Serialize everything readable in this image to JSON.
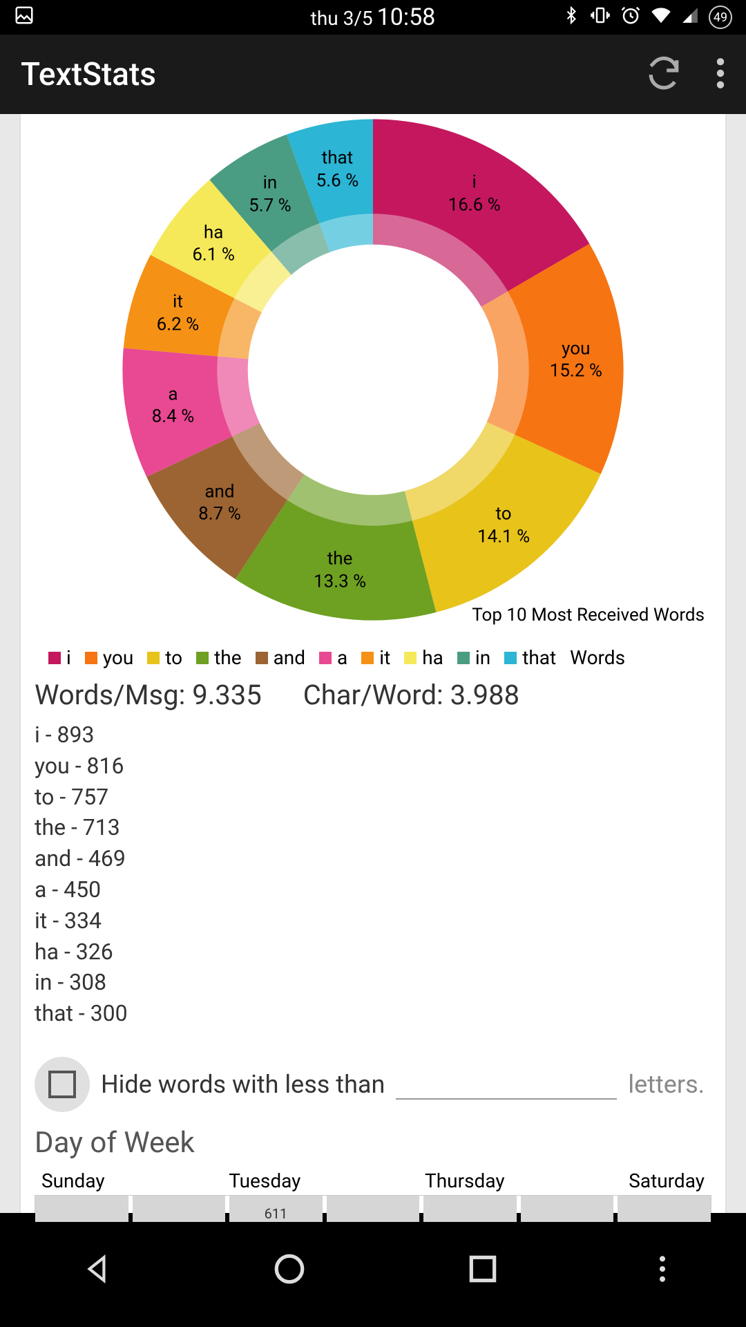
{
  "status": {
    "date": "thu 3/5",
    "time": "10:58",
    "battery": "49"
  },
  "appbar": {
    "title": "TextStats"
  },
  "chart": {
    "type": "donut",
    "caption": "Top 10 Most Received Words",
    "inner_ratio": 0.5,
    "background_color": "#ffffff",
    "label_fontsize": 26,
    "label_color": "#000000",
    "slices": [
      {
        "word": "i",
        "pct": 16.6,
        "color": "#c4175e"
      },
      {
        "word": "you",
        "pct": 15.2,
        "color": "#f77412"
      },
      {
        "word": "to",
        "pct": 14.1,
        "color": "#e8c31a"
      },
      {
        "word": "the",
        "pct": 13.3,
        "color": "#6ea022"
      },
      {
        "word": "and",
        "pct": 8.7,
        "color": "#9c6432"
      },
      {
        "word": "a",
        "pct": 8.4,
        "color": "#e84992"
      },
      {
        "word": "it",
        "pct": 6.2,
        "color": "#f59115"
      },
      {
        "word": "ha",
        "pct": 6.1,
        "color": "#f5e95a"
      },
      {
        "word": "in",
        "pct": 5.7,
        "color": "#4a9c82"
      },
      {
        "word": "that",
        "pct": 5.6,
        "color": "#2cb5d4"
      }
    ],
    "legend_title": "Words"
  },
  "stats": {
    "words_per_msg_label": "Words/Msg:",
    "words_per_msg": "9.335",
    "char_per_word_label": "Char/Word:",
    "char_per_word": "3.988"
  },
  "counts": [
    {
      "word": "i",
      "n": 893
    },
    {
      "word": "you",
      "n": 816
    },
    {
      "word": "to",
      "n": 757
    },
    {
      "word": "the",
      "n": 713
    },
    {
      "word": "and",
      "n": 469
    },
    {
      "word": "a",
      "n": 450
    },
    {
      "word": "it",
      "n": 334
    },
    {
      "word": "ha",
      "n": 326
    },
    {
      "word": "in",
      "n": 308
    },
    {
      "word": "that",
      "n": 300
    }
  ],
  "hide": {
    "prefix": "Hide words with less than",
    "suffix": "letters.",
    "value": ""
  },
  "dow": {
    "title": "Day of Week",
    "header": [
      "Sunday",
      "Tuesday",
      "Thursday",
      "Saturday"
    ],
    "bar_value": "611",
    "bar_color": "#d6d6d6",
    "border_color": "#cccccc"
  }
}
